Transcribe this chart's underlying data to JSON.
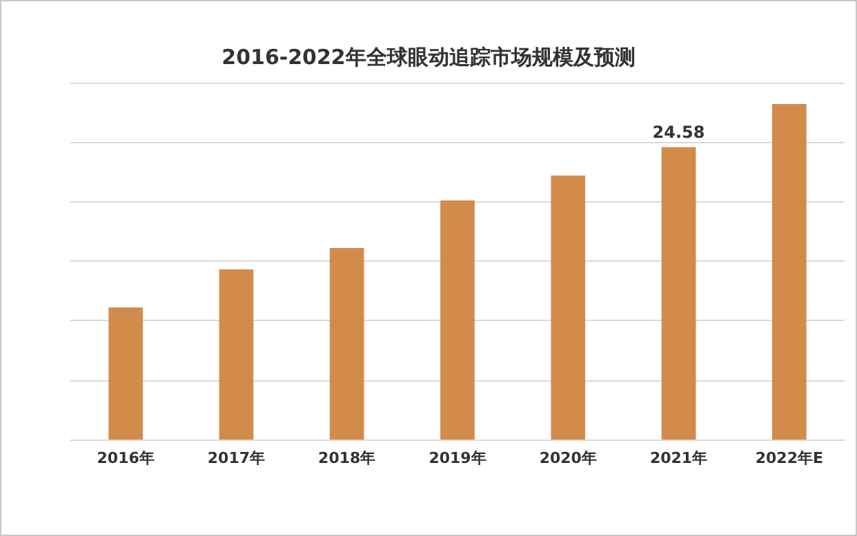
{
  "chart_data": {
    "type": "bar",
    "title": "2016-2022年全球眼动追踪市场规模及预测",
    "categories": [
      "2016年",
      "2017年",
      "2018年",
      "2019年",
      "2020年",
      "2021年",
      "2022年E"
    ],
    "values": [
      11.1,
      14.3,
      16.1,
      20.1,
      22.2,
      24.58,
      28.2
    ],
    "value_labels": [
      null,
      null,
      null,
      null,
      null,
      "24.58",
      null
    ],
    "color": "#d38b4c",
    "ylim": [
      0,
      30
    ],
    "yticks": [
      {
        "value": 0,
        "label": null
      },
      {
        "value": 5,
        "label": null
      },
      {
        "value": 10,
        "label": null
      },
      {
        "value": 15,
        "label": null
      },
      {
        "value": 20,
        "label": null
      },
      {
        "value": 25,
        "label": null
      },
      {
        "value": 30,
        "label": null
      }
    ],
    "grid": "y",
    "tick_labels": "x"
  }
}
